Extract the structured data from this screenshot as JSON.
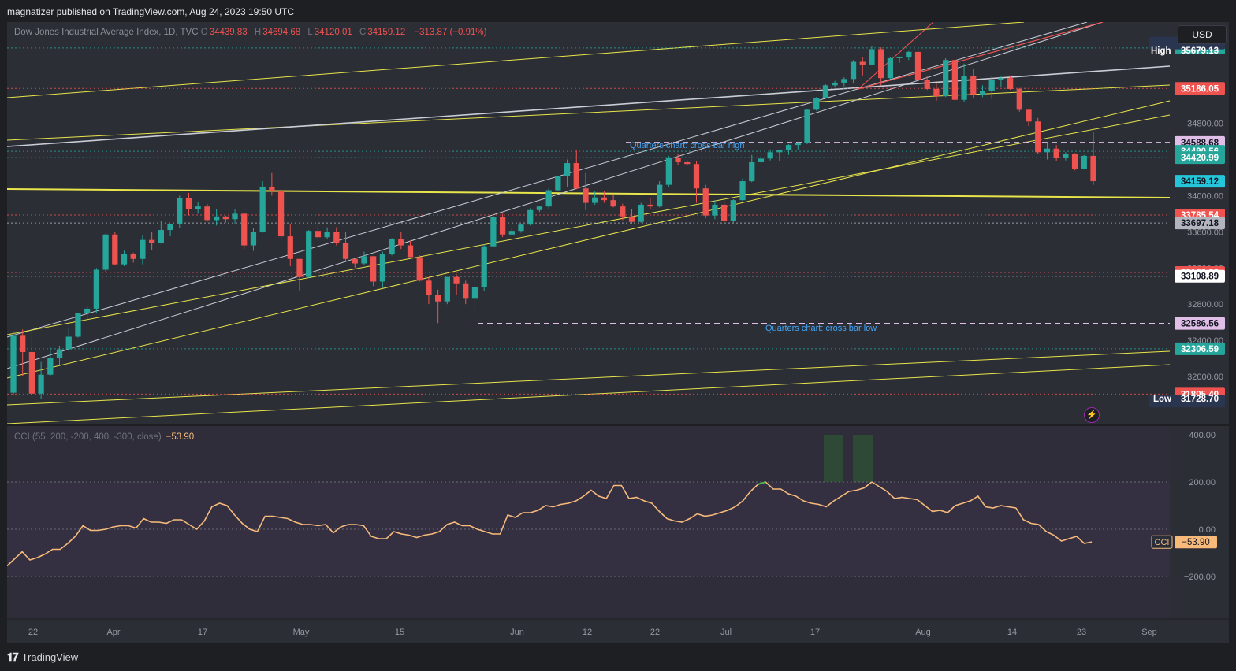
{
  "header": {
    "publisher": "magnatizer published on TradingView.com, Aug 24, 2023 19:50 UTC"
  },
  "legend": {
    "symbol": "Dow Jones Industrial Average Index, 1D, TVC",
    "open_label": "O",
    "open": "34439.83",
    "high_label": "H",
    "high": "34694.68",
    "low_label": "L",
    "low": "34120.01",
    "close_label": "C",
    "close": "34159.12",
    "change": "−313.87 (−0.91%)"
  },
  "currency": "USD",
  "hilo": {
    "high_label": "High",
    "high_value": "35679.13",
    "low_label": "Low",
    "low_value": "31728.70"
  },
  "annotations": {
    "cross_bar_high": "Quarters chart: cross bar high",
    "cross_bar_low": "Quarters chart: cross bar low"
  },
  "cci": {
    "legend": "CCI (55, 200, -200, 400, -300, close)",
    "value": "−53.90",
    "tag_label": "CCI"
  },
  "branding": {
    "name": "TradingView"
  },
  "colors": {
    "up": "#26a69a",
    "down": "#ef5350",
    "channel_yellow": "#e8e54a",
    "channel_white": "#c9cdd6",
    "cci_line": "#f7ba7b",
    "background": "#2c2e36"
  },
  "chart_data": [
    {
      "type": "candlestick",
      "title": "Dow Jones Industrial Average Index, 1D, TVC",
      "x_ticks": [
        "22",
        "Apr",
        "17",
        "May",
        "15",
        "Jun",
        "12",
        "22",
        "Jul",
        "17",
        "Aug",
        "14",
        "23",
        "Sep"
      ],
      "y_ticks": [
        32000,
        32400,
        32800,
        33200,
        33600,
        34000,
        34400,
        34800,
        35200,
        35600
      ],
      "y_range": [
        31460,
        35920
      ],
      "price_levels": [
        {
          "value": 35633.61,
          "label": "35633.61",
          "color": "#26a69a",
          "style": "dotted"
        },
        {
          "value": 35186.05,
          "label": "35186.05",
          "color": "#ef5350",
          "style": "dotted"
        },
        {
          "value": 34588.68,
          "label": "34588.68",
          "color": "#e1bee7",
          "style": "dashed"
        },
        {
          "value": 34490.56,
          "label": "34490.56",
          "color": "#26a69a",
          "style": "dotted"
        },
        {
          "value": 34420.99,
          "label": "34420.99",
          "color": "#26a69a",
          "style": "dotted"
        },
        {
          "value": 34159.12,
          "label": "34159.12",
          "color": "#26c6da",
          "style": "none"
        },
        {
          "value": 33785.54,
          "label": "33785.54",
          "color": "#ef5350",
          "style": "dotted"
        },
        {
          "value": 33697.18,
          "label": "33697.18",
          "color": "#b2b5be",
          "style": "dotted"
        },
        {
          "value": 33150.33,
          "label": "33150.33",
          "color": "#ef5350",
          "style": "dotted"
        },
        {
          "value": 33108.89,
          "label": "33108.89",
          "color": "#ffffff",
          "style": "dotted"
        },
        {
          "value": 32586.56,
          "label": "32586.56",
          "color": "#e1bee7",
          "style": "dashed"
        },
        {
          "value": 32306.59,
          "label": "32306.59",
          "color": "#26a69a",
          "style": "dotted"
        },
        {
          "value": 31805.4,
          "label": "31805.40",
          "color": "#ef5350",
          "style": "dotted"
        }
      ],
      "ohlc": [
        [
          31820,
          32500,
          31790,
          32450
        ],
        [
          32450,
          32520,
          32000,
          32270
        ],
        [
          32270,
          32550,
          31790,
          31810
        ],
        [
          31810,
          32160,
          31750,
          32020
        ],
        [
          32020,
          32330,
          32000,
          32200
        ],
        [
          32200,
          32340,
          32130,
          32300
        ],
        [
          32300,
          32530,
          32290,
          32440
        ],
        [
          32440,
          32700,
          32430,
          32700
        ],
        [
          32700,
          32780,
          32640,
          32750
        ],
        [
          32750,
          33200,
          32700,
          33180
        ],
        [
          33180,
          33580,
          33150,
          33570
        ],
        [
          33570,
          33600,
          33230,
          33240
        ],
        [
          33240,
          33390,
          33220,
          33350
        ],
        [
          33350,
          33370,
          33260,
          33300
        ],
        [
          33300,
          33560,
          33240,
          33510
        ],
        [
          33510,
          33600,
          33400,
          33480
        ],
        [
          33480,
          33720,
          33470,
          33620
        ],
        [
          33620,
          33690,
          33550,
          33690
        ],
        [
          33690,
          34000,
          33640,
          33970
        ],
        [
          33970,
          34030,
          33780,
          33850
        ],
        [
          33850,
          33930,
          33800,
          33880
        ],
        [
          33880,
          33910,
          33710,
          33730
        ],
        [
          33730,
          33850,
          33670,
          33770
        ],
        [
          33770,
          33780,
          33700,
          33740
        ],
        [
          33740,
          33850,
          33690,
          33800
        ],
        [
          33800,
          33810,
          33410,
          33450
        ],
        [
          33450,
          33640,
          33390,
          33600
        ],
        [
          33600,
          34160,
          33590,
          34100
        ],
        [
          34100,
          34250,
          34000,
          34050
        ],
        [
          34050,
          34060,
          33510,
          33550
        ],
        [
          33550,
          33680,
          33220,
          33300
        ],
        [
          33300,
          33300,
          32950,
          33100
        ],
        [
          33100,
          33620,
          33090,
          33610
        ],
        [
          33610,
          33680,
          33500,
          33540
        ],
        [
          33540,
          33650,
          33520,
          33600
        ],
        [
          33600,
          33650,
          33450,
          33480
        ],
        [
          33480,
          33600,
          33280,
          33300
        ],
        [
          33300,
          33310,
          33200,
          33250
        ],
        [
          33250,
          33380,
          33230,
          33330
        ],
        [
          33330,
          33330,
          33000,
          33050
        ],
        [
          33050,
          33380,
          32980,
          33350
        ],
        [
          33350,
          33530,
          33340,
          33520
        ],
        [
          33520,
          33600,
          33410,
          33450
        ],
        [
          33450,
          33500,
          33320,
          33320
        ],
        [
          33320,
          33340,
          33050,
          33060
        ],
        [
          33060,
          33100,
          32800,
          32900
        ],
        [
          32900,
          32960,
          32590,
          32830
        ],
        [
          32830,
          33100,
          32800,
          33100
        ],
        [
          33100,
          33130,
          32900,
          33030
        ],
        [
          33030,
          33060,
          32800,
          32860
        ],
        [
          32860,
          33100,
          32720,
          32990
        ],
        [
          32990,
          33460,
          32950,
          33440
        ],
        [
          33440,
          33780,
          33430,
          33760
        ],
        [
          33760,
          33800,
          33540,
          33570
        ],
        [
          33570,
          33640,
          33560,
          33610
        ],
        [
          33610,
          33680,
          33590,
          33680
        ],
        [
          33680,
          33860,
          33670,
          33840
        ],
        [
          33840,
          33890,
          33820,
          33880
        ],
        [
          33880,
          34080,
          33850,
          34060
        ],
        [
          34060,
          34220,
          34050,
          34220
        ],
        [
          34220,
          34400,
          34100,
          34360
        ],
        [
          34360,
          34500,
          34070,
          34080
        ],
        [
          34080,
          34250,
          33840,
          33920
        ],
        [
          33920,
          34050,
          33900,
          33980
        ],
        [
          33980,
          34050,
          33920,
          33950
        ],
        [
          33950,
          34010,
          33870,
          33880
        ],
        [
          33880,
          33910,
          33730,
          33770
        ],
        [
          33770,
          33850,
          33690,
          33710
        ],
        [
          33710,
          33920,
          33700,
          33900
        ],
        [
          33900,
          33970,
          33850,
          33880
        ],
        [
          33880,
          34160,
          33870,
          34120
        ],
        [
          34120,
          34440,
          34100,
          34420
        ],
        [
          34420,
          34460,
          34340,
          34370
        ],
        [
          34370,
          34390,
          34330,
          34350
        ],
        [
          34350,
          34380,
          33920,
          34080
        ],
        [
          34080,
          34120,
          33750,
          33780
        ],
        [
          33780,
          33950,
          33740,
          33900
        ],
        [
          33900,
          33950,
          33700,
          33720
        ],
        [
          33720,
          33960,
          33700,
          33950
        ],
        [
          33950,
          34190,
          33940,
          34160
        ],
        [
          34160,
          34450,
          34150,
          34370
        ],
        [
          34370,
          34500,
          34340,
          34410
        ],
        [
          34410,
          34510,
          34390,
          34480
        ],
        [
          34480,
          34510,
          34380,
          34500
        ],
        [
          34500,
          34570,
          34450,
          34560
        ],
        [
          34560,
          34590,
          34510,
          34580
        ],
        [
          34580,
          34960,
          34570,
          34950
        ],
        [
          34950,
          35090,
          34940,
          35080
        ],
        [
          35080,
          35230,
          35070,
          35220
        ],
        [
          35220,
          35270,
          35200,
          35250
        ],
        [
          35250,
          35310,
          35210,
          35290
        ],
        [
          35290,
          35500,
          35240,
          35480
        ],
        [
          35480,
          35530,
          35330,
          35450
        ],
        [
          35450,
          35650,
          35440,
          35620
        ],
        [
          35620,
          35640,
          35220,
          35300
        ],
        [
          35300,
          35530,
          35290,
          35520
        ],
        [
          35520,
          35540,
          35470,
          35530
        ],
        [
          35530,
          35600,
          35500,
          35590
        ],
        [
          35590,
          35640,
          35220,
          35280
        ],
        [
          35280,
          35320,
          35170,
          35180
        ],
        [
          35180,
          35240,
          35050,
          35100
        ],
        [
          35100,
          35520,
          35090,
          35500
        ],
        [
          35500,
          35510,
          35050,
          35060
        ],
        [
          35060,
          35460,
          35040,
          35320
        ],
        [
          35320,
          35400,
          35080,
          35120
        ],
        [
          35120,
          35220,
          35090,
          35160
        ],
        [
          35160,
          35320,
          35070,
          35280
        ],
        [
          35280,
          35320,
          35200,
          35300
        ],
        [
          35300,
          35330,
          35170,
          35180
        ],
        [
          35180,
          35190,
          34930,
          34950
        ],
        [
          34950,
          34960,
          34770,
          34820
        ],
        [
          34820,
          34860,
          34460,
          34480
        ],
        [
          34480,
          34590,
          34400,
          34520
        ],
        [
          34520,
          34560,
          34380,
          34420
        ],
        [
          34420,
          34480,
          34390,
          34460
        ],
        [
          34460,
          34470,
          34280,
          34300
        ],
        [
          34300,
          34450,
          34290,
          34440
        ],
        [
          34440,
          34700,
          34120,
          34160
        ]
      ]
    },
    {
      "type": "line",
      "title": "CCI (55, 200, -200, 400, -300, close)",
      "y_ticks": [
        400,
        200,
        0,
        -200
      ],
      "y_range": [
        -380,
        440
      ],
      "hlines": [
        200,
        0,
        -200
      ],
      "series": [
        {
          "name": "CCI",
          "values": [
            -155,
            -125,
            -95,
            -130,
            -120,
            -105,
            -85,
            -85,
            -60,
            -30,
            15,
            -5,
            -5,
            0,
            10,
            15,
            15,
            5,
            45,
            30,
            30,
            25,
            40,
            40,
            20,
            0,
            35,
            95,
            110,
            100,
            60,
            25,
            0,
            -10,
            55,
            55,
            50,
            45,
            30,
            20,
            20,
            15,
            20,
            -15,
            10,
            20,
            20,
            15,
            -30,
            -40,
            -40,
            -10,
            -20,
            -25,
            -35,
            -25,
            -20,
            -10,
            20,
            30,
            15,
            15,
            0,
            -10,
            -20,
            -20,
            60,
            50,
            70,
            70,
            80,
            100,
            95,
            105,
            110,
            120,
            140,
            165,
            140,
            130,
            185,
            185,
            130,
            135,
            120,
            110,
            75,
            45,
            35,
            30,
            45,
            65,
            55,
            60,
            70,
            80,
            95,
            120,
            160,
            190,
            200,
            170,
            170,
            150,
            140,
            120,
            110,
            105,
            95,
            120,
            140,
            160,
            165,
            175,
            200,
            180,
            160,
            130,
            135,
            130,
            125,
            100,
            75,
            80,
            70,
            100,
            110,
            120,
            140,
            95,
            90,
            100,
            95,
            90,
            40,
            25,
            20,
            -10,
            -25,
            -50,
            -40,
            -30,
            -60,
            -54
          ]
        }
      ]
    }
  ]
}
